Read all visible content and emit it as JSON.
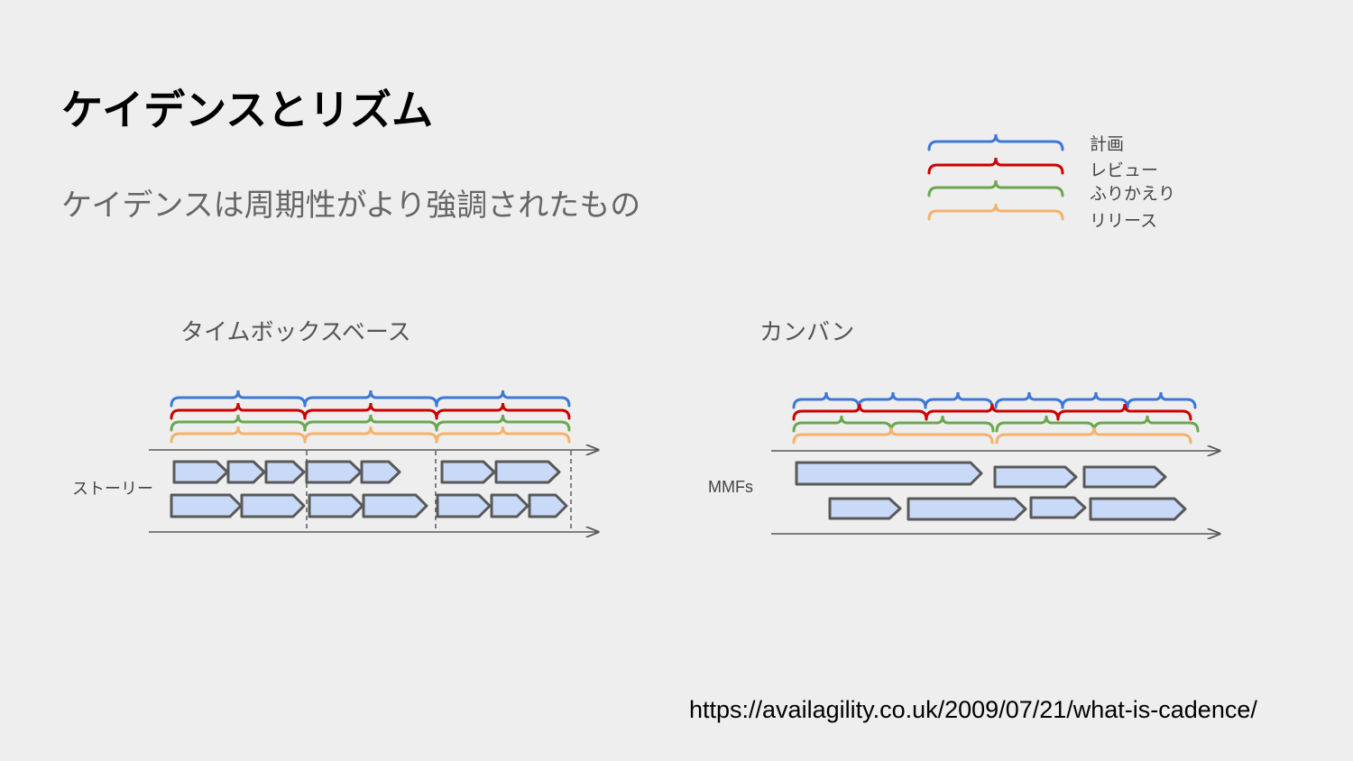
{
  "title": "ケイデンスとリズム",
  "subtitle": "ケイデンスは周期性がより強調されたもの",
  "legend": {
    "items": [
      {
        "label": "計画",
        "color": "#3c78d8"
      },
      {
        "label": "レビュー",
        "color": "#cc0000"
      },
      {
        "label": "ふりかえり",
        "color": "#6aa84f"
      },
      {
        "label": "リリース",
        "color": "#f6b26b"
      }
    ]
  },
  "timebox": {
    "title": "タイムボックスベース",
    "row_label": "ストーリー"
  },
  "kanban": {
    "title": "カンバン",
    "row_label": "MMFs"
  },
  "colors": {
    "box_fill": "#c9daf8",
    "box_stroke": "#595959",
    "axis": "#595959"
  },
  "source_url": "https://availagility.co.uk/2009/07/21/what-is-cadence/"
}
